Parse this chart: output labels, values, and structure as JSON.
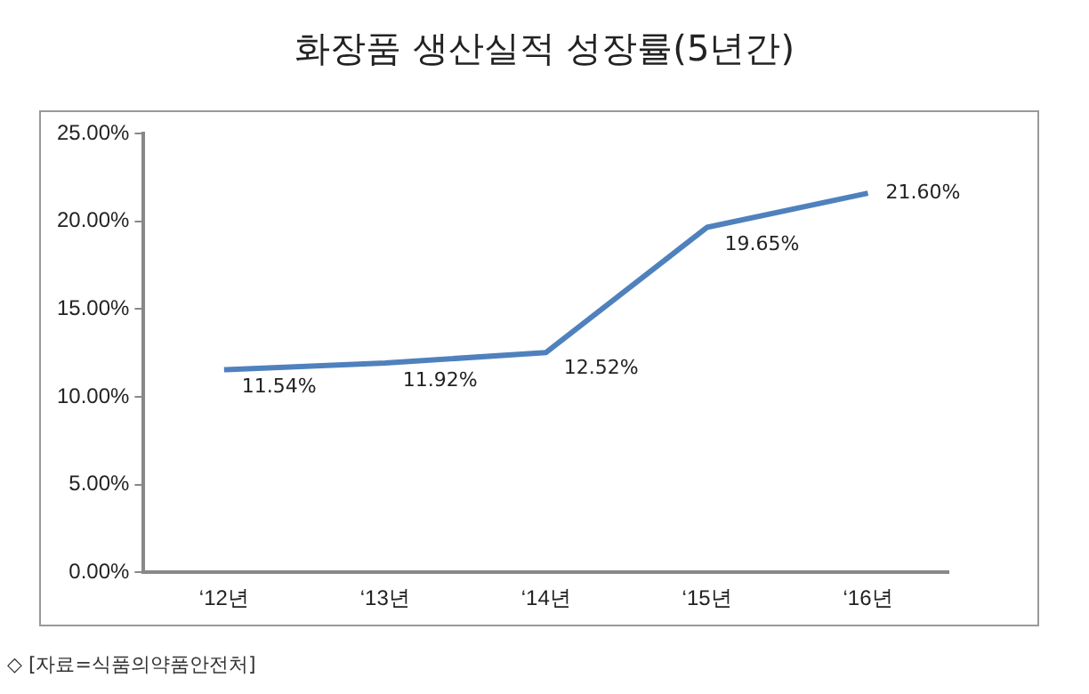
{
  "chart_data": {
    "type": "line",
    "title": "화장품 생산실적 성장률(5년간)",
    "categories": [
      "‘12년",
      "‘13년",
      "‘14년",
      "‘15년",
      "‘16년"
    ],
    "series": [
      {
        "color": "#4f81bd",
        "values": [
          11.54,
          11.92,
          12.52,
          19.65,
          21.6
        ],
        "value_labels": [
          "11.54%",
          "11.92%",
          "12.52%",
          "19.65%",
          "21.60%"
        ]
      }
    ],
    "ylim": [
      0,
      25
    ],
    "yticks": [
      {
        "value": 0,
        "label": "0.00%"
      },
      {
        "value": 5,
        "label": "5.00%"
      },
      {
        "value": 10,
        "label": "10.00%"
      },
      {
        "value": 15,
        "label": "15.00%"
      },
      {
        "value": 20,
        "label": "20.00%"
      },
      {
        "value": 25,
        "label": "25.00%"
      }
    ],
    "grid": false,
    "legend": false,
    "marker": "none",
    "line_style": "solid",
    "annotations": [
      "◇ [자료=식품의약품안전처]"
    ]
  }
}
